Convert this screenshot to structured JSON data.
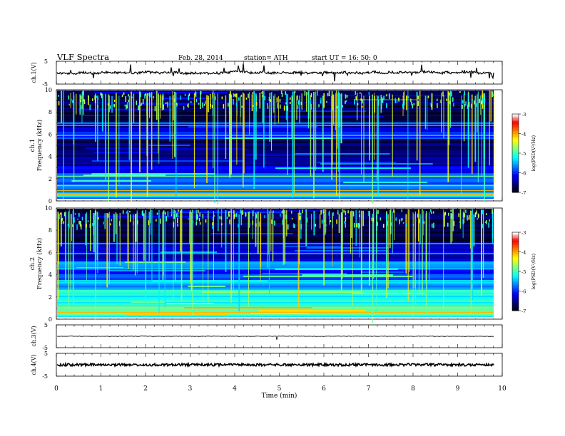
{
  "header": {
    "title": "VLF  Spectra",
    "date": "Feb. 28,  2014",
    "station": "station= ATH",
    "start": "start  UT  =    16: 50: 0"
  },
  "colors": {
    "colormap": [
      "#000000",
      "#00007f",
      "#0000ff",
      "#0080ff",
      "#00ffff",
      "#80ff80",
      "#ffff00",
      "#ff8000",
      "#ff0000",
      "#ffffff"
    ],
    "trace": "#000000"
  },
  "chart_data": [
    {
      "type": "line",
      "panel": "ch1",
      "ylabel": "ch.1(V)",
      "ylim": [
        -5,
        5
      ],
      "yticks": [
        "5",
        "-5"
      ],
      "description_values": {
        "baseline": 0,
        "spikes": true
      }
    },
    {
      "type": "heatmap",
      "panel": "spec1",
      "ylabel_top": "ch.1",
      "ylabel": "Frequency  (kHz)",
      "ylim": [
        0,
        10
      ],
      "yticks": [
        "0",
        "2",
        "4",
        "6",
        "8",
        "10"
      ],
      "colorbar": {
        "label": "log(PSD(V²/Hz)",
        "range": [
          -7,
          -3
        ],
        "ticks": [
          "-3",
          "-4",
          "-5",
          "-6",
          "-7"
        ]
      }
    },
    {
      "type": "heatmap",
      "panel": "spec2",
      "ylabel_top": "ch.2",
      "ylabel": "Frequency  (kHz)",
      "ylim": [
        0,
        10
      ],
      "yticks": [
        "0",
        "2",
        "4",
        "6",
        "8",
        "10"
      ],
      "colorbar": {
        "label": "log(PSD(V²/Hz)",
        "range": [
          -7,
          -3
        ],
        "ticks": [
          "-3",
          "-4",
          "-5",
          "-6",
          "-7"
        ]
      }
    },
    {
      "type": "line",
      "panel": "ch3",
      "ylabel": "ch.3(V)",
      "ylim": [
        -5,
        5
      ],
      "yticks": [
        "5",
        "-5"
      ]
    },
    {
      "type": "line",
      "panel": "ch4",
      "ylabel": "ch.4(V)",
      "ylim": [
        -5,
        5
      ],
      "yticks": [
        "5",
        "-5"
      ],
      "xlabel": "Time  (min)",
      "xlim": [
        0,
        10
      ],
      "xticks": [
        "0",
        "1",
        "2",
        "3",
        "4",
        "5",
        "6",
        "7",
        "8",
        "9",
        "10"
      ]
    }
  ]
}
